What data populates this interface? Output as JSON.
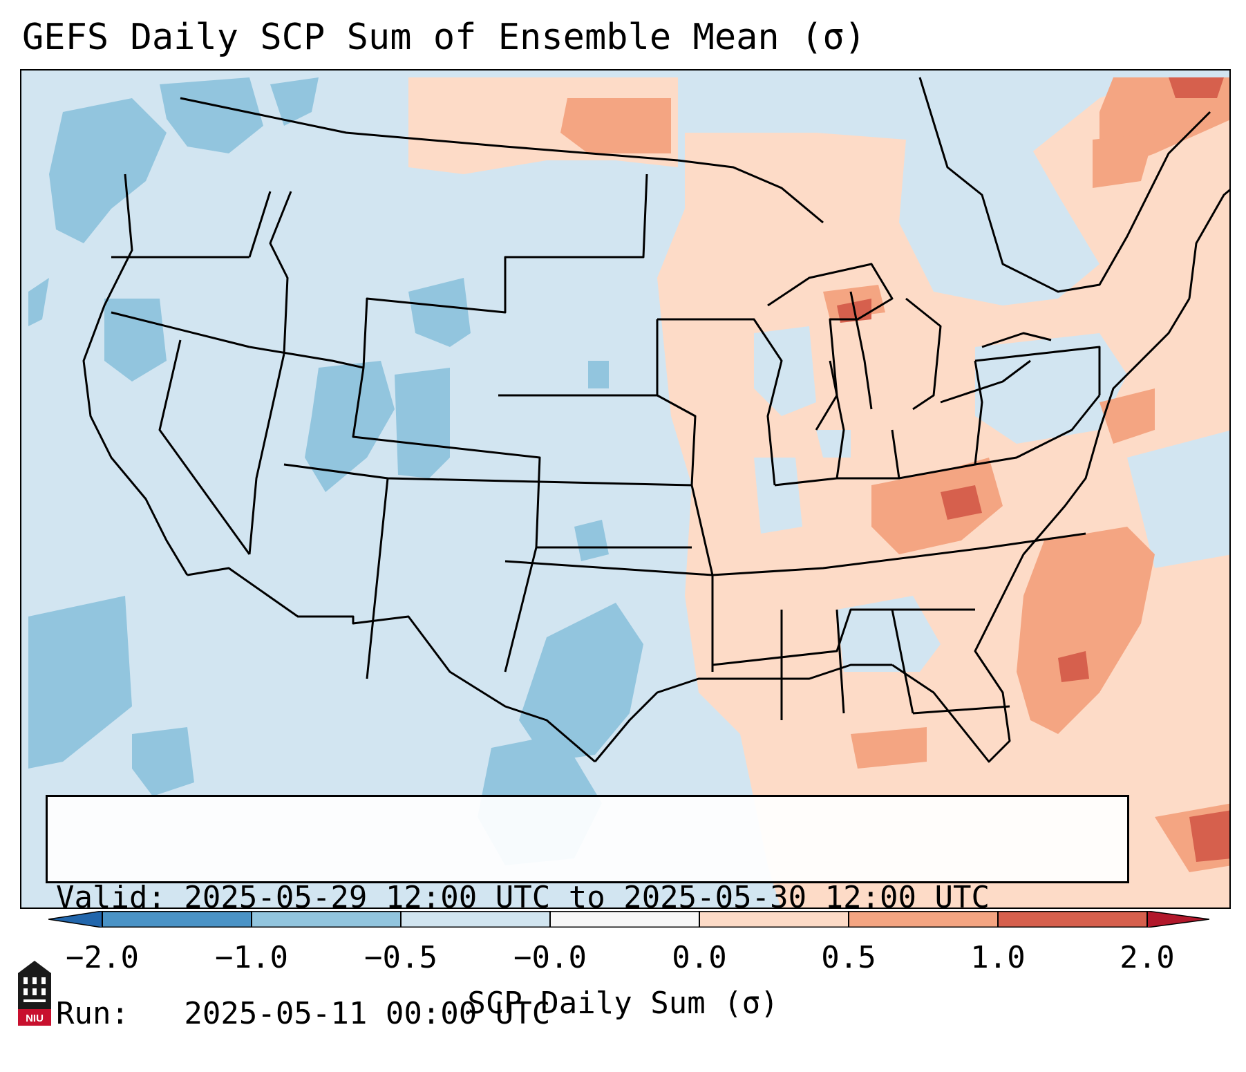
{
  "title": "GEFS Daily SCP Sum of Ensemble Mean (σ)",
  "info": {
    "valid_line": "Valid: 2025-05-29 12:00 UTC to 2025-05-30 12:00 UTC",
    "run_line": "Run:   2025-05-11 00:00 UTC"
  },
  "colorbar": {
    "label": "SCP Daily Sum (σ)",
    "ticks": [
      "−2.0",
      "−1.0",
      "−0.5",
      "−0.0",
      "0.0",
      "0.5",
      "1.0",
      "2.0"
    ],
    "colors": [
      "#4a93c6",
      "#92c5de",
      "#d1e5f0",
      "#f7f7f7",
      "#fddbc7",
      "#f4a582",
      "#d6604d"
    ],
    "extend_low": "#2166ac",
    "extend_high": "#b2182b"
  },
  "logo": {
    "text": "NIU",
    "icon": "university-seal-icon"
  }
}
